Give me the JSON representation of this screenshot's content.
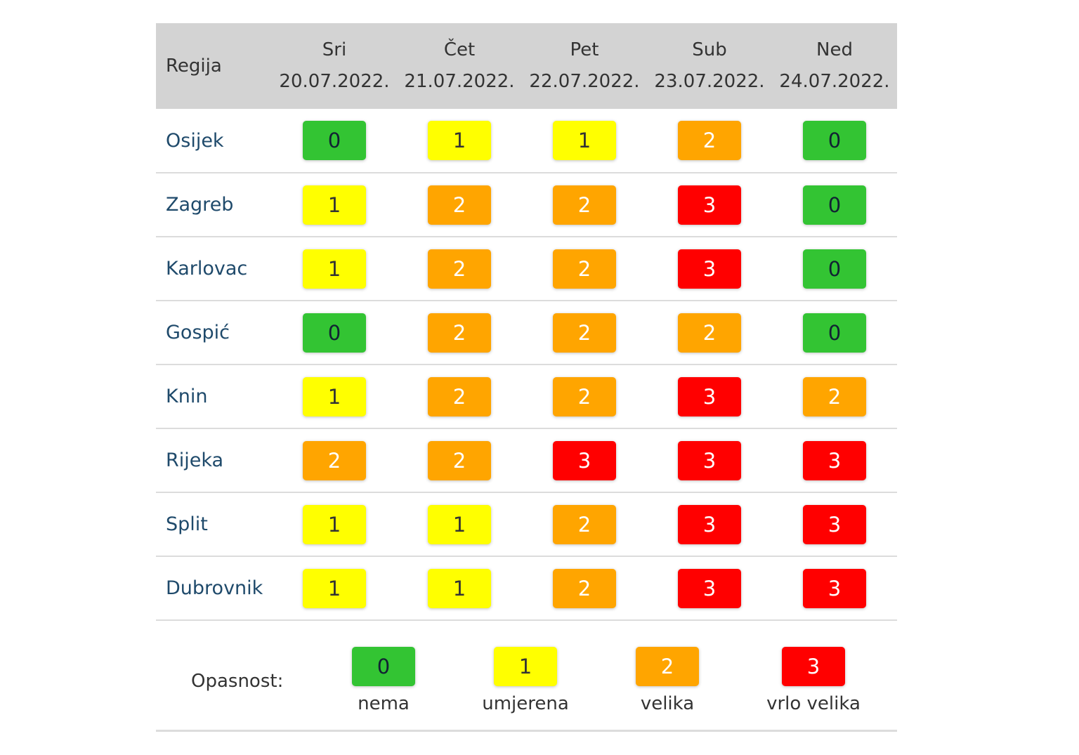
{
  "colors": {
    "0": "#33c433",
    "1": "#ffff00",
    "2": "#ffa500",
    "3": "#ff0000"
  },
  "header": {
    "region_label": "Regija",
    "days": [
      {
        "day": "Sri",
        "date": "20.07.2022."
      },
      {
        "day": "Čet",
        "date": "21.07.2022."
      },
      {
        "day": "Pet",
        "date": "22.07.2022."
      },
      {
        "day": "Sub",
        "date": "23.07.2022."
      },
      {
        "day": "Ned",
        "date": "24.07.2022."
      }
    ]
  },
  "rows": [
    {
      "region": "Osijek",
      "values": [
        "0",
        "1",
        "1",
        "2",
        "0"
      ]
    },
    {
      "region": "Zagreb",
      "values": [
        "1",
        "2",
        "2",
        "3",
        "0"
      ]
    },
    {
      "region": "Karlovac",
      "values": [
        "1",
        "2",
        "2",
        "3",
        "0"
      ]
    },
    {
      "region": "Gospić",
      "values": [
        "0",
        "2",
        "2",
        "2",
        "0"
      ]
    },
    {
      "region": "Knin",
      "values": [
        "1",
        "2",
        "2",
        "3",
        "2"
      ]
    },
    {
      "region": "Rijeka",
      "values": [
        "2",
        "2",
        "3",
        "3",
        "3"
      ]
    },
    {
      "region": "Split",
      "values": [
        "1",
        "1",
        "2",
        "3",
        "3"
      ]
    },
    {
      "region": "Dubrovnik",
      "values": [
        "1",
        "1",
        "2",
        "3",
        "3"
      ]
    }
  ],
  "legend": {
    "label": "Opasnost:",
    "items": [
      {
        "value": "0",
        "text": "nema"
      },
      {
        "value": "1",
        "text": "umjerena"
      },
      {
        "value": "2",
        "text": "velika"
      },
      {
        "value": "3",
        "text": "vrlo velika"
      }
    ]
  }
}
